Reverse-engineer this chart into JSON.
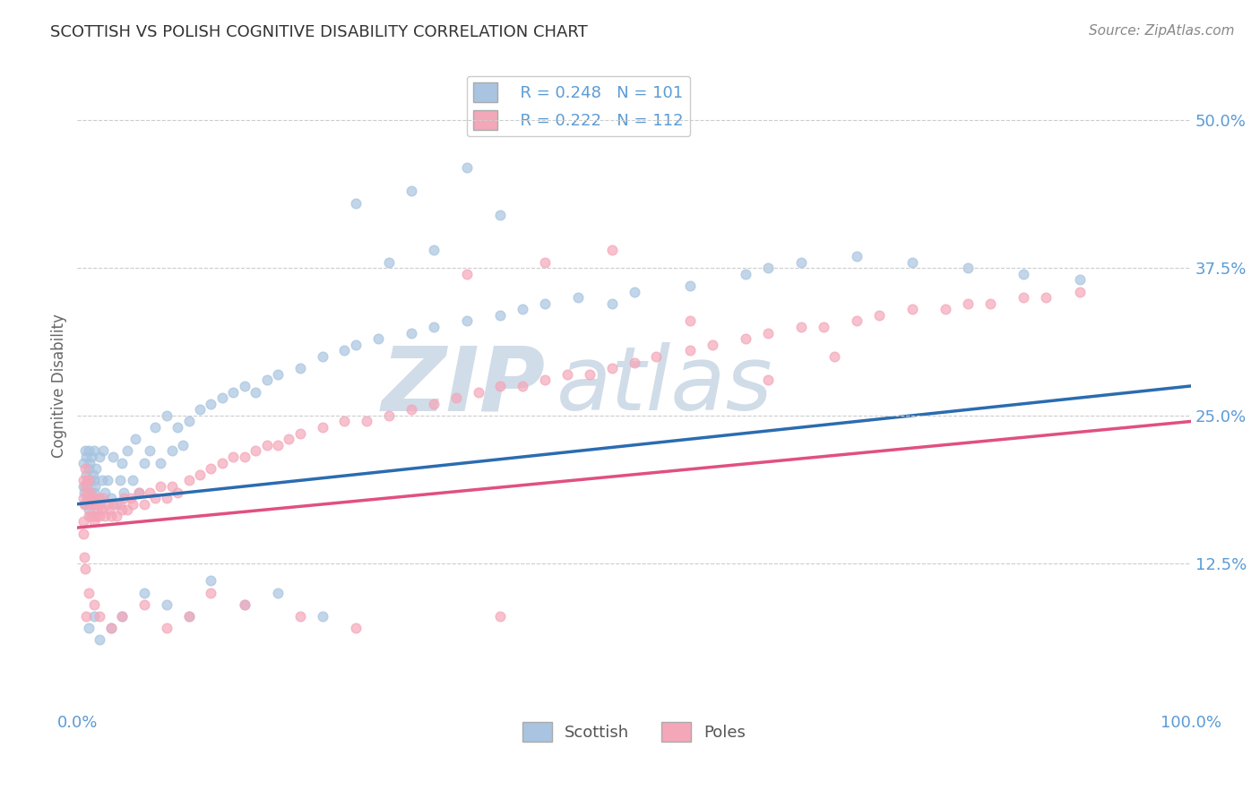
{
  "title": "SCOTTISH VS POLISH COGNITIVE DISABILITY CORRELATION CHART",
  "source_text": "Source: ZipAtlas.com",
  "ylabel": "Cognitive Disability",
  "xlim": [
    0.0,
    1.0
  ],
  "ylim": [
    0.0,
    0.55
  ],
  "yticks": [
    0.125,
    0.25,
    0.375,
    0.5
  ],
  "ytick_labels": [
    "12.5%",
    "25.0%",
    "37.5%",
    "50.0%"
  ],
  "xticks": [
    0.0,
    1.0
  ],
  "xtick_labels": [
    "0.0%",
    "100.0%"
  ],
  "background_color": "#ffffff",
  "grid_color": "#cccccc",
  "title_color": "#333333",
  "axis_label_color": "#5b9bd5",
  "watermark_text": "ZIPAtlas",
  "watermark_color": "#d0dce8",
  "series": [
    {
      "name": "Scottish",
      "R": 0.248,
      "N": 101,
      "color": "#a8c4e0",
      "line_color": "#2b6cb0"
    },
    {
      "name": "Poles",
      "R": 0.222,
      "N": 112,
      "color": "#f4a7b9",
      "line_color": "#e05080"
    }
  ],
  "scottish_x": [
    0.005,
    0.005,
    0.006,
    0.007,
    0.007,
    0.008,
    0.008,
    0.009,
    0.009,
    0.01,
    0.01,
    0.01,
    0.01,
    0.011,
    0.011,
    0.012,
    0.012,
    0.013,
    0.013,
    0.014,
    0.014,
    0.015,
    0.015,
    0.015,
    0.016,
    0.017,
    0.018,
    0.02,
    0.02,
    0.022,
    0.023,
    0.025,
    0.027,
    0.03,
    0.032,
    0.035,
    0.038,
    0.04,
    0.042,
    0.045,
    0.05,
    0.052,
    0.055,
    0.06,
    0.065,
    0.07,
    0.075,
    0.08,
    0.085,
    0.09,
    0.095,
    0.1,
    0.11,
    0.12,
    0.13,
    0.14,
    0.15,
    0.16,
    0.17,
    0.18,
    0.2,
    0.22,
    0.24,
    0.25,
    0.27,
    0.3,
    0.32,
    0.35,
    0.38,
    0.4,
    0.42,
    0.45,
    0.48,
    0.5,
    0.55,
    0.6,
    0.62,
    0.65,
    0.7,
    0.75,
    0.8,
    0.85,
    0.9,
    0.25,
    0.3,
    0.35,
    0.28,
    0.32,
    0.38,
    0.22,
    0.18,
    0.15,
    0.12,
    0.1,
    0.08,
    0.06,
    0.04,
    0.03,
    0.02,
    0.015,
    0.01
  ],
  "scottish_y": [
    0.19,
    0.21,
    0.185,
    0.22,
    0.175,
    0.2,
    0.215,
    0.18,
    0.19,
    0.17,
    0.195,
    0.205,
    0.22,
    0.175,
    0.21,
    0.185,
    0.195,
    0.18,
    0.215,
    0.175,
    0.2,
    0.185,
    0.195,
    0.22,
    0.19,
    0.205,
    0.175,
    0.18,
    0.215,
    0.195,
    0.22,
    0.185,
    0.195,
    0.18,
    0.215,
    0.175,
    0.195,
    0.21,
    0.185,
    0.22,
    0.195,
    0.23,
    0.185,
    0.21,
    0.22,
    0.24,
    0.21,
    0.25,
    0.22,
    0.24,
    0.225,
    0.245,
    0.255,
    0.26,
    0.265,
    0.27,
    0.275,
    0.27,
    0.28,
    0.285,
    0.29,
    0.3,
    0.305,
    0.31,
    0.315,
    0.32,
    0.325,
    0.33,
    0.335,
    0.34,
    0.345,
    0.35,
    0.345,
    0.355,
    0.36,
    0.37,
    0.375,
    0.38,
    0.385,
    0.38,
    0.375,
    0.37,
    0.365,
    0.43,
    0.44,
    0.46,
    0.38,
    0.39,
    0.42,
    0.08,
    0.1,
    0.09,
    0.11,
    0.08,
    0.09,
    0.1,
    0.08,
    0.07,
    0.06,
    0.08,
    0.07
  ],
  "poles_x": [
    0.005,
    0.005,
    0.006,
    0.007,
    0.007,
    0.008,
    0.009,
    0.009,
    0.01,
    0.01,
    0.01,
    0.011,
    0.012,
    0.012,
    0.013,
    0.014,
    0.015,
    0.015,
    0.016,
    0.017,
    0.018,
    0.019,
    0.02,
    0.021,
    0.022,
    0.023,
    0.025,
    0.027,
    0.029,
    0.03,
    0.032,
    0.035,
    0.038,
    0.04,
    0.042,
    0.045,
    0.048,
    0.05,
    0.055,
    0.06,
    0.065,
    0.07,
    0.075,
    0.08,
    0.085,
    0.09,
    0.1,
    0.11,
    0.12,
    0.13,
    0.14,
    0.15,
    0.16,
    0.17,
    0.18,
    0.19,
    0.2,
    0.22,
    0.24,
    0.26,
    0.28,
    0.3,
    0.32,
    0.34,
    0.36,
    0.38,
    0.4,
    0.42,
    0.44,
    0.46,
    0.48,
    0.5,
    0.52,
    0.55,
    0.57,
    0.6,
    0.62,
    0.65,
    0.67,
    0.7,
    0.72,
    0.75,
    0.78,
    0.8,
    0.82,
    0.85,
    0.87,
    0.9,
    0.35,
    0.42,
    0.48,
    0.55,
    0.62,
    0.68,
    0.38,
    0.25,
    0.2,
    0.15,
    0.12,
    0.1,
    0.08,
    0.06,
    0.04,
    0.03,
    0.02,
    0.015,
    0.01,
    0.008,
    0.007,
    0.006,
    0.005,
    0.005
  ],
  "poles_y": [
    0.18,
    0.195,
    0.175,
    0.19,
    0.205,
    0.175,
    0.185,
    0.195,
    0.165,
    0.18,
    0.195,
    0.175,
    0.165,
    0.185,
    0.175,
    0.165,
    0.18,
    0.16,
    0.175,
    0.165,
    0.17,
    0.18,
    0.165,
    0.175,
    0.17,
    0.18,
    0.165,
    0.175,
    0.17,
    0.165,
    0.175,
    0.165,
    0.175,
    0.17,
    0.18,
    0.17,
    0.18,
    0.175,
    0.185,
    0.175,
    0.185,
    0.18,
    0.19,
    0.18,
    0.19,
    0.185,
    0.195,
    0.2,
    0.205,
    0.21,
    0.215,
    0.215,
    0.22,
    0.225,
    0.225,
    0.23,
    0.235,
    0.24,
    0.245,
    0.245,
    0.25,
    0.255,
    0.26,
    0.265,
    0.27,
    0.275,
    0.275,
    0.28,
    0.285,
    0.285,
    0.29,
    0.295,
    0.3,
    0.305,
    0.31,
    0.315,
    0.32,
    0.325,
    0.325,
    0.33,
    0.335,
    0.34,
    0.34,
    0.345,
    0.345,
    0.35,
    0.35,
    0.355,
    0.37,
    0.38,
    0.39,
    0.33,
    0.28,
    0.3,
    0.08,
    0.07,
    0.08,
    0.09,
    0.1,
    0.08,
    0.07,
    0.09,
    0.08,
    0.07,
    0.08,
    0.09,
    0.1,
    0.08,
    0.12,
    0.13,
    0.15,
    0.16
  ]
}
